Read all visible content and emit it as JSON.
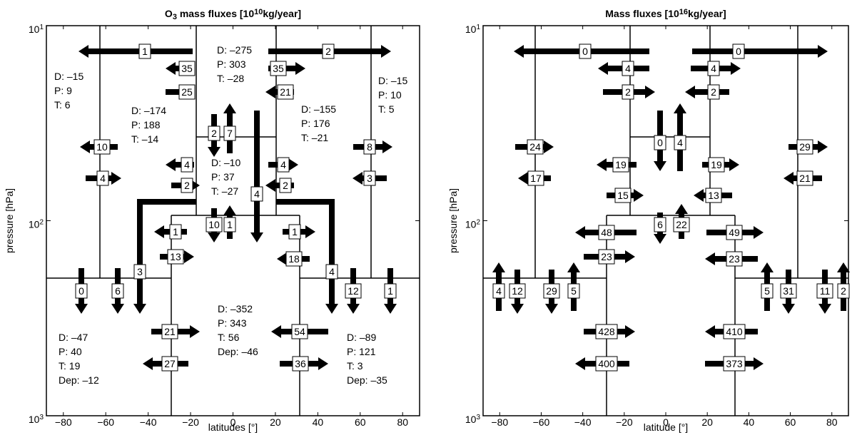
{
  "panels": [
    {
      "title": {
        "pre": "O",
        "sub": "3",
        "mid": " mass fluxes [10",
        "sup": "10",
        "post": "kg/year]"
      },
      "xlabel": "latitudes [°]",
      "ylabel": "pressure [hPa]",
      "xlim": [
        -88,
        88
      ],
      "ylim": [
        1000,
        10
      ],
      "log_y": true,
      "xticks": [
        {
          "value": -80,
          "label": "−80"
        },
        {
          "value": -60,
          "label": "−60"
        },
        {
          "value": -40,
          "label": "−40"
        },
        {
          "value": -20,
          "label": "−20"
        },
        0,
        20,
        40,
        60,
        80
      ],
      "yticks": [
        {
          "value": 10,
          "label": "10",
          "exponent": "1"
        },
        {
          "value": 100,
          "label": "10",
          "exponent": "2"
        },
        {
          "value": 1000,
          "label": "10",
          "exponent": "3"
        }
      ],
      "arrows": [
        1,
        2,
        35,
        35,
        25,
        21,
        2,
        7,
        10,
        8,
        4,
        3,
        4,
        4,
        2,
        2,
        4,
        10,
        1,
        1,
        1,
        13,
        18,
        3,
        4,
        0,
        6,
        12,
        1,
        21,
        54,
        27,
        36
      ],
      "budgets": [
        [
          "D: –275",
          "P: 303",
          "T: –28"
        ],
        [
          "D: –15",
          "P: 9",
          "T: 6"
        ],
        [
          "D: –15",
          "P: 10",
          "T: 5"
        ],
        [
          "D: –174",
          "P: 188",
          "T: –14"
        ],
        [
          "D: –155",
          "P: 176",
          "T: –21"
        ],
        [
          "D: –10",
          "P: 37",
          "T: –27"
        ],
        [
          "D: –352",
          "P: 343",
          "T: 56",
          "Dep: –46"
        ],
        [
          "D: –47",
          "P: 40",
          "T: 19",
          "Dep: –12"
        ],
        [
          "D: –89",
          "P: 121",
          "T: 3",
          "Dep: –35"
        ]
      ]
    },
    {
      "title": {
        "pre": "Mass fluxes [10",
        "sup": "16",
        "post": "kg/year]"
      },
      "xlabel": "latitude [°]",
      "ylabel": "pressure [hPa]",
      "xlim": [
        -88,
        88
      ],
      "ylim": [
        1000,
        10
      ],
      "log_y": true,
      "xticks": [
        {
          "value": -80,
          "label": "−80"
        },
        {
          "value": -60,
          "label": "−60"
        },
        {
          "value": -40,
          "label": "−40"
        },
        {
          "value": -20,
          "label": "−20"
        },
        0,
        20,
        40,
        60,
        80
      ],
      "yticks": [
        {
          "value": 10,
          "label": "10",
          "exponent": "1"
        },
        {
          "value": 100,
          "label": "10",
          "exponent": "2"
        },
        {
          "value": 1000,
          "label": "10",
          "exponent": "3"
        }
      ],
      "arrows": [
        0,
        0,
        4,
        4,
        2,
        2,
        0,
        4,
        24,
        29,
        17,
        21,
        19,
        19,
        15,
        13,
        6,
        22,
        48,
        49,
        23,
        23,
        4,
        12,
        29,
        5,
        5,
        31,
        11,
        2,
        428,
        410,
        400,
        373
      ],
      "budgets": []
    }
  ]
}
